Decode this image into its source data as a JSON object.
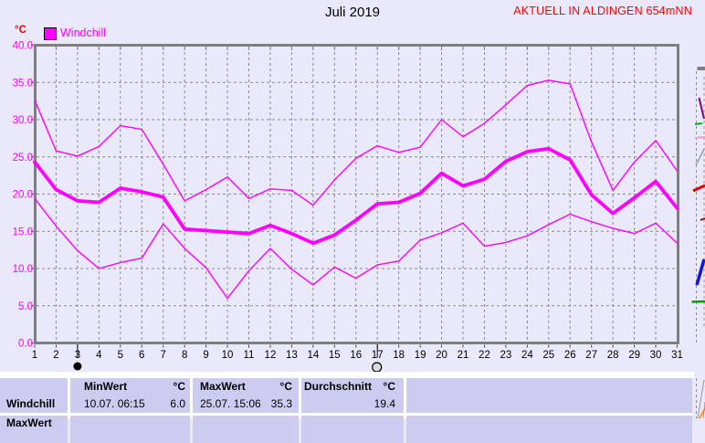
{
  "header": {
    "title": "Juli 2019",
    "station": "AKTUELL IN ALDINGEN 654mNN",
    "unit": "°C"
  },
  "legend": {
    "label": "Windchill",
    "swatch_color": "#ff00ff"
  },
  "colors": {
    "series": "#ff00ff",
    "axis_labels_y": "#ff00ff",
    "axis_labels_x": "#000000",
    "grid": "#8c8c8c",
    "border": "#7f7f7f",
    "station_text": "#ff0000",
    "table_cell": "#ccccf0",
    "background": "#e9e9fb"
  },
  "chart_data": {
    "type": "line",
    "title": "Juli 2019",
    "ylabel": "°C",
    "ylim": [
      0,
      40
    ],
    "grid": true,
    "legend_position": "top-left",
    "x": [
      1,
      2,
      3,
      4,
      5,
      6,
      7,
      8,
      9,
      10,
      11,
      12,
      13,
      14,
      15,
      16,
      17,
      18,
      19,
      20,
      21,
      22,
      23,
      24,
      25,
      26,
      27,
      28,
      29,
      30,
      31
    ],
    "x_tick_labels": [
      "1",
      "2",
      "3",
      "4",
      "5",
      "6",
      "7",
      "8",
      "9",
      "10",
      "11",
      "12",
      "13",
      "14",
      "15",
      "16",
      "17",
      "18",
      "19",
      "20",
      "21",
      "22",
      "23",
      "24",
      "25",
      "26",
      "27",
      "28",
      "29",
      "30",
      "31"
    ],
    "y_tick_labels": [
      "0.0",
      "5.0",
      "10.0",
      "15.0",
      "20.0",
      "25.0",
      "30.0",
      "35.0",
      "40.0"
    ],
    "series": [
      {
        "name": "max",
        "role": "max",
        "values": [
          32.6,
          25.8,
          25.1,
          26.4,
          29.2,
          28.7,
          24.0,
          19.1,
          20.6,
          22.3,
          19.4,
          20.7,
          20.5,
          18.5,
          21.9,
          24.8,
          26.5,
          25.6,
          26.3,
          30.0,
          27.7,
          29.5,
          32.0,
          34.6,
          35.3,
          34.8,
          27.0,
          20.5,
          24.3,
          27.2,
          23.1
        ]
      },
      {
        "name": "mean",
        "role": "mean",
        "values": [
          24.3,
          20.6,
          19.1,
          18.9,
          20.8,
          20.3,
          19.6,
          15.3,
          15.1,
          14.9,
          14.7,
          15.8,
          14.7,
          13.4,
          14.5,
          16.5,
          18.7,
          18.9,
          20.1,
          22.8,
          21.1,
          22.0,
          24.4,
          25.7,
          26.1,
          24.6,
          19.9,
          17.4,
          19.5,
          21.7,
          18.1
        ]
      },
      {
        "name": "min",
        "role": "min",
        "values": [
          19.4,
          15.7,
          12.4,
          10.0,
          10.8,
          11.4,
          16.0,
          12.7,
          10.1,
          6.0,
          9.7,
          12.7,
          9.9,
          7.8,
          10.2,
          8.7,
          10.5,
          11.0,
          13.8,
          14.8,
          16.1,
          13.0,
          13.5,
          14.4,
          15.9,
          17.3,
          16.3,
          15.4,
          14.7,
          16.1,
          13.4
        ]
      }
    ],
    "moon_markers": [
      {
        "day": 3,
        "phase": "new-moon"
      },
      {
        "day": 17,
        "phase": "full-moon"
      }
    ]
  },
  "table": {
    "row_label": "Windchill",
    "min": {
      "header": "MinWert",
      "unit": "°C",
      "datetime": "10.07.  06:15",
      "value": "6.0"
    },
    "max": {
      "header": "MaxWert",
      "unit": "°C",
      "datetime": "25.07.  15:06",
      "value": "35.3"
    },
    "avg": {
      "header": "Durchschnitt",
      "unit": "°C",
      "value": "19.4"
    },
    "clipped_next_row_label": "MaxWert"
  }
}
